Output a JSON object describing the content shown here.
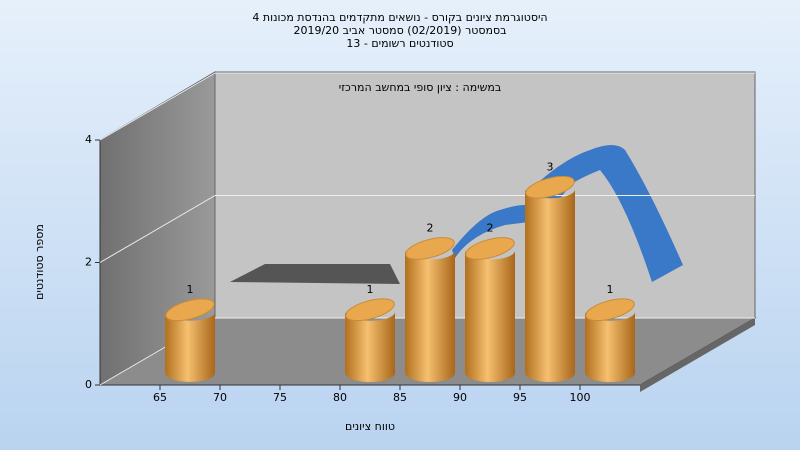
{
  "chart_data": {
    "type": "bar",
    "title": "היסטוגרמת ציונים בקורס - נושאים מתקדמים בהנדסת מכונות 4",
    "subtitle": "בסמסטר  (02/2019)  סמסטר אביב 2019/20",
    "subtitle2": "סטודנטים רשומים - 13",
    "annotation": "במשימה : ציון סופי במחשב המרכזי",
    "x_label": "טווח ציונים",
    "y_label": "מספר סטודנטים",
    "categories": [
      "65",
      "70",
      "75",
      "80",
      "85",
      "90",
      "95",
      "100"
    ],
    "values": [
      1,
      0,
      0,
      1,
      2,
      2,
      3,
      1
    ],
    "color": "#e8a850",
    "ylim": [
      0,
      4
    ],
    "yticks": [
      0,
      2,
      4
    ],
    "grid": true
  }
}
